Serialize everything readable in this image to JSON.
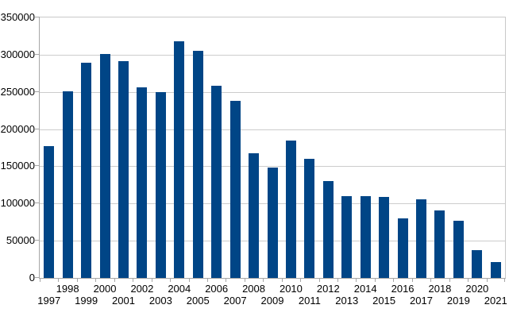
{
  "chart_data": {
    "type": "bar",
    "title": "",
    "xlabel": "",
    "ylabel": "",
    "legend": "none",
    "grid": "horizontal",
    "x_label_layout": "staggered-two-rows",
    "categories": [
      "1997",
      "1998",
      "1999",
      "2000",
      "2001",
      "2002",
      "2003",
      "2004",
      "2005",
      "2006",
      "2007",
      "2008",
      "2009",
      "2010",
      "2011",
      "2012",
      "2013",
      "2014",
      "2015",
      "2016",
      "2017",
      "2018",
      "2019",
      "2020",
      "2021"
    ],
    "values": [
      177000,
      251000,
      289000,
      301000,
      291000,
      256000,
      250000,
      318000,
      305000,
      258000,
      238000,
      168000,
      148000,
      185000,
      160000,
      130000,
      110000,
      110000,
      109000,
      80000,
      106000,
      91000,
      77000,
      37000,
      21000
    ],
    "ylim": [
      0,
      350000
    ],
    "ytick_interval": 50000,
    "ytick_labels": [
      "0",
      "50000",
      "100000",
      "150000",
      "200000",
      "250000",
      "300000",
      "350000"
    ],
    "colors": {
      "bar": "#004586",
      "gridline": "#cccccc",
      "axis": "#a6a6a6",
      "plot_border_light": "#c9c9c9",
      "tick": "#a6a6a6",
      "text": "#000000",
      "background": "#ffffff"
    }
  }
}
